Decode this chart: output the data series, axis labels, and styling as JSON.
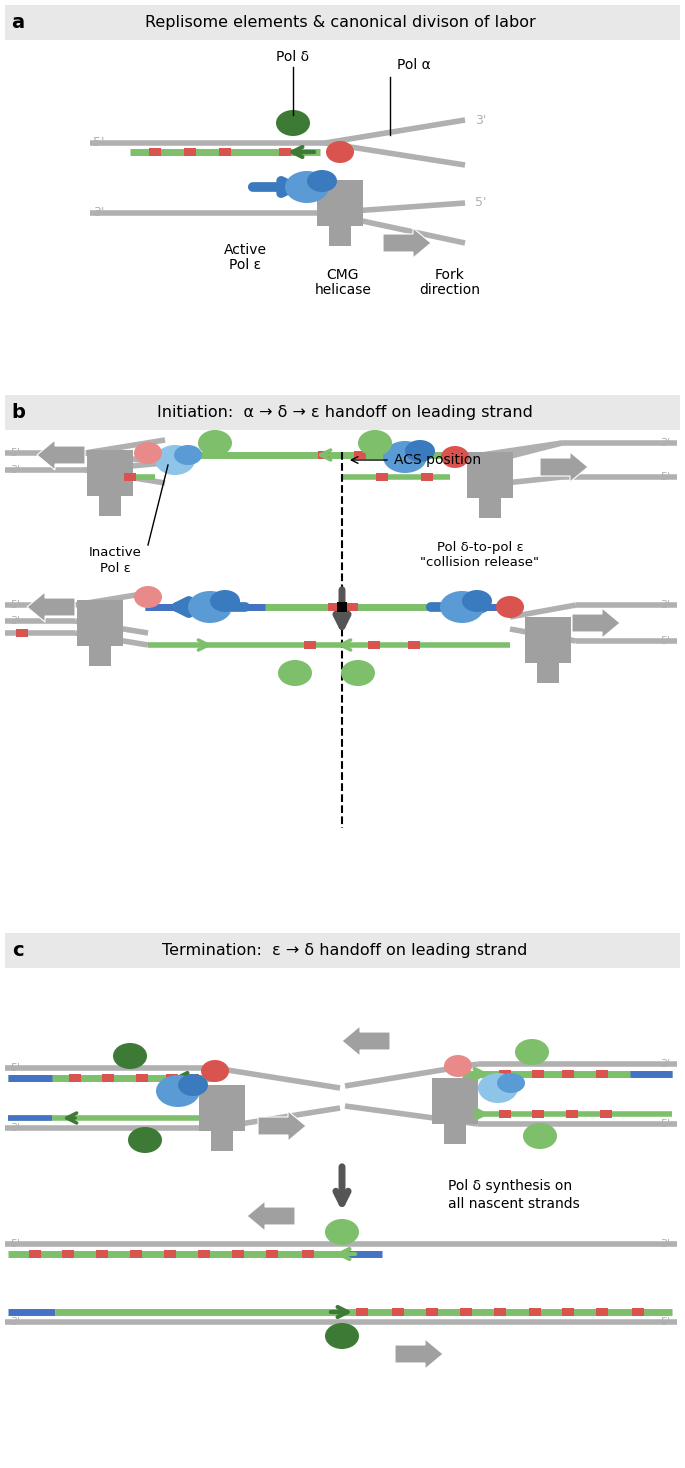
{
  "panel_a_title": "Replisome elements & canonical divison of labor",
  "panel_b_title": "Initiation:  α → δ → ε handoff on leading strand",
  "panel_c_title": "Termination:  ε → δ handoff on leading strand",
  "colors": {
    "background": "#ffffff",
    "panel_header": "#e8e8e8",
    "gray_line": "#b0b0b0",
    "gray_shape": "#a0a0a0",
    "gray_arrow": "#a0a0a0",
    "blue_pol_epsilon": "#5b9bd5",
    "blue_pol_epsilon_inactive": "#8ec4e8",
    "blue_pol_epsilon_dark": "#3a7abf",
    "green_pol_delta_dark": "#3d7a35",
    "green_pol_delta_light": "#7dbf6a",
    "red_pol_alpha": "#d9534f",
    "red_pol_alpha_light": "#e88a8a",
    "green_strand": "#7dbf6a",
    "blue_strand": "#4472c4",
    "red_segment": "#d9534f",
    "black": "#000000",
    "dark_gray_arrow": "#555555",
    "text_gray": "#b0b0b0"
  },
  "label_a": "a",
  "label_b": "b",
  "label_c": "c"
}
